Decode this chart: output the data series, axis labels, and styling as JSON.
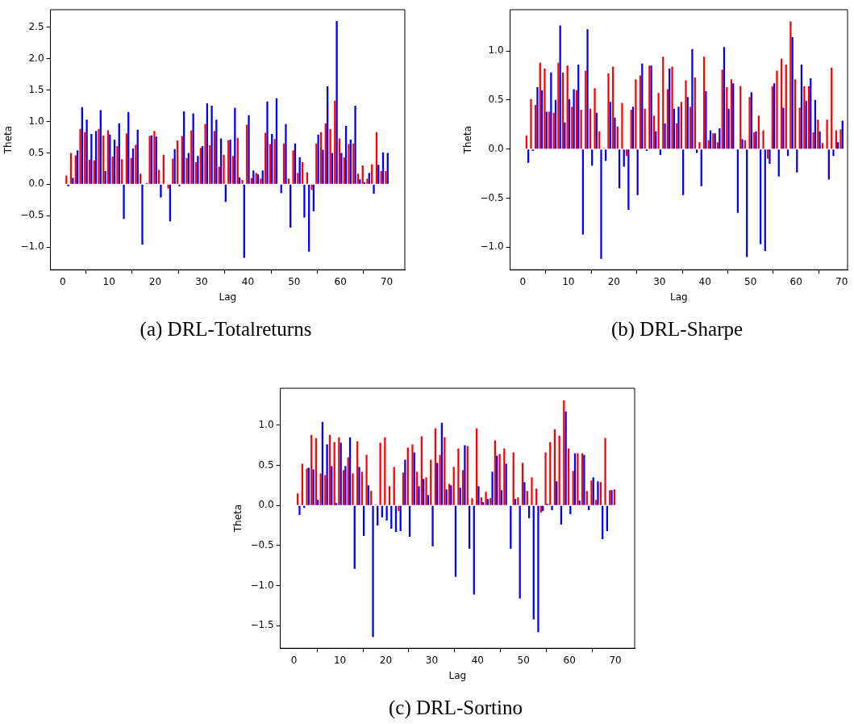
{
  "chart_data": [
    {
      "type": "bar",
      "title": "(a) DRL-Totalreturns",
      "xlabel": "Lag",
      "ylabel": "Theta",
      "grid": false,
      "legend": false,
      "x": [
        1,
        2,
        3,
        4,
        5,
        6,
        7,
        8,
        9,
        10,
        11,
        12,
        13,
        14,
        15,
        16,
        17,
        18,
        19,
        20,
        21,
        22,
        23,
        24,
        25,
        26,
        27,
        28,
        29,
        30,
        31,
        32,
        33,
        34,
        35,
        36,
        37,
        38,
        39,
        40,
        41,
        42,
        43,
        44,
        45,
        46,
        47,
        48,
        49,
        50,
        51,
        52,
        53,
        54,
        55,
        56,
        57,
        58,
        59,
        60,
        61,
        62,
        63,
        64,
        65,
        66,
        67,
        68,
        69,
        70
      ],
      "xlim": [
        -2.65,
        73.9
      ],
      "xticks": [
        0,
        10,
        20,
        30,
        40,
        50,
        60,
        70
      ],
      "ylim": [
        -1.36,
        2.78
      ],
      "yticks": [
        {
          "value": -1,
          "label": "−1.0"
        },
        {
          "value": -0.5,
          "label": "−0.5"
        },
        {
          "value": 0,
          "label": "0.0"
        },
        0.5,
        {
          "value": 1,
          "label": "1.0"
        },
        1.5,
        {
          "value": 2,
          "label": "2.0"
        },
        2.5
      ],
      "series": [
        {
          "color": "#ff0000",
          "values": [
            0.14,
            0.5,
            0.46,
            0.88,
            0.83,
            0.39,
            0.38,
            0.88,
            0.78,
            0.86,
            0.44,
            0.61,
            0.4,
            0.81,
            0.42,
            0.63,
            0.17,
            null,
            0.77,
            0.85,
            0.23,
            0.47,
            -0.07,
            0.41,
            0.7,
            0.77,
            0.42,
            0.86,
            0.35,
            0.58,
            0.96,
            0.62,
            0.85,
            0.28,
            0.47,
            0.7,
            0.45,
            0.74,
            0.07,
            0.95,
            0.1,
            0.18,
            0.09,
            0.82,
            0.64,
            0.72,
            null,
            0.65,
            0.09,
            0.54,
            0.18,
            0.35,
            0.19,
            -0.09,
            0.65,
            0.83,
            0.97,
            0.88,
            1.33,
            0.73,
            0.43,
            0.64,
            0.65,
            0.17,
            0.3,
            0.09,
            0.32,
            0.83,
            0.21,
            0.21
          ]
        },
        {
          "color": "#0000ff",
          "values": [
            -0.03,
            0.1,
            0.54,
            1.23,
            1.03,
            0.8,
            0.85,
            1.18,
            0.21,
            0.79,
            0.71,
            0.97,
            -0.55,
            1.15,
            0.57,
            0.87,
            -0.96,
            0.02,
            0.78,
            0.76,
            -0.21,
            0,
            -0.59,
            0.56,
            -0.03,
            1.16,
            0.5,
            1.13,
            0.45,
            0.61,
            1.29,
            1.25,
            1.03,
            0.73,
            -0.28,
            0.71,
            1.22,
            0.11,
            -1.17,
            1.1,
            0.22,
            0.16,
            0.22,
            1.32,
            0.8,
            1.37,
            -0.14,
            0.96,
            -0.69,
            0.65,
            0.43,
            -0.53,
            -1.07,
            -0.43,
            0.79,
            0.55,
            1.56,
            0.5,
            2.6,
            0.5,
            0.93,
            0.71,
            1.25,
            0.08,
            0.03,
            0.18,
            -0.15,
            0.31,
            0.51,
            0.5
          ]
        }
      ]
    },
    {
      "type": "bar",
      "title": "(b) DRL-Sharpe",
      "xlabel": "Lag",
      "ylabel": "Theta",
      "grid": false,
      "legend": false,
      "x": [
        1,
        2,
        3,
        4,
        5,
        6,
        7,
        8,
        9,
        10,
        11,
        12,
        13,
        14,
        15,
        16,
        17,
        18,
        19,
        20,
        21,
        22,
        23,
        24,
        25,
        26,
        27,
        28,
        29,
        30,
        31,
        32,
        33,
        34,
        35,
        36,
        37,
        38,
        39,
        40,
        41,
        42,
        43,
        44,
        45,
        46,
        47,
        48,
        49,
        50,
        51,
        52,
        53,
        54,
        55,
        56,
        57,
        58,
        59,
        60,
        61,
        62,
        63,
        64,
        65,
        66,
        67,
        68,
        69,
        70
      ],
      "xlim": [
        -2.8,
        71.3
      ],
      "xticks": [
        0,
        10,
        20,
        30,
        40,
        50,
        60,
        70
      ],
      "ylim": [
        -1.23,
        1.42
      ],
      "yticks": [
        {
          "value": -1,
          "label": "−1.0"
        },
        {
          "value": -0.5,
          "label": "−0.5"
        },
        {
          "value": 0,
          "label": "0.0"
        },
        0.5,
        {
          "value": 1,
          "label": "1.0"
        }
      ],
      "series": [
        {
          "color": "#ff0000",
          "values": [
            0.14,
            0.51,
            0.45,
            0.88,
            0.82,
            0.38,
            0.37,
            0.88,
            0.78,
            0.85,
            0.43,
            0.6,
            0.4,
            0.8,
            0.41,
            0.62,
            0.18,
            0.01,
            0.77,
            0.84,
            0.23,
            0.47,
            -0.07,
            0.4,
            0.71,
            0.75,
            0.41,
            0.85,
            0.34,
            0.57,
            0.94,
            0.61,
            0.84,
            0.26,
            0.48,
            0.7,
            0.43,
            0.73,
            0.07,
            0.94,
            0.09,
            0.16,
            0.07,
            0.81,
            0.63,
            0.71,
            0,
            0.64,
            0.09,
            0.53,
            0.17,
            0.34,
            0.19,
            -0.1,
            0.64,
            0.8,
            0.92,
            0.86,
            1.3,
            0.71,
            0.42,
            0.64,
            0.64,
            0.17,
            0.3,
            0.06,
            0.3,
            0.83,
            0.19,
            0.2
          ]
        },
        {
          "color": "#0000ff",
          "values": [
            -0.14,
            -0.02,
            0.63,
            0.6,
            0.38,
            0.78,
            0.5,
            1.26,
            0.27,
            0.51,
            0.61,
            0.86,
            -0.87,
            1.22,
            -0.17,
            0.37,
            -1.12,
            -0.12,
            0.48,
            0.32,
            -0.4,
            -0.18,
            -0.62,
            0.43,
            -0.47,
            0.87,
            -0.02,
            0.85,
            0.18,
            -0.06,
            0.26,
            0.82,
            0.41,
            0.43,
            -0.47,
            0.53,
            1.02,
            -0.04,
            -0.38,
            0.59,
            0.19,
            0.16,
            0.21,
            1.04,
            0.41,
            0.67,
            -0.65,
            0.1,
            -1.1,
            0.58,
            0.18,
            -0.97,
            -1.04,
            -0.15,
            0.67,
            -0.28,
            0.42,
            -0.07,
            1.14,
            -0.24,
            0.86,
            0.49,
            0.72,
            0.5,
            0.18,
            0,
            -0.31,
            -0.07,
            0.07,
            0.29
          ]
        }
      ]
    },
    {
      "type": "bar",
      "title": "(c) DRL-Sortino",
      "xlabel": "Lag",
      "ylabel": "Theta",
      "grid": false,
      "legend": false,
      "x": [
        1,
        2,
        3,
        4,
        5,
        6,
        7,
        8,
        9,
        10,
        11,
        12,
        13,
        14,
        15,
        16,
        17,
        18,
        19,
        20,
        21,
        22,
        23,
        24,
        25,
        26,
        27,
        28,
        29,
        30,
        31,
        32,
        33,
        34,
        35,
        36,
        37,
        38,
        39,
        40,
        41,
        42,
        43,
        44,
        45,
        46,
        47,
        48,
        49,
        50,
        51,
        52,
        53,
        54,
        55,
        56,
        57,
        58,
        59,
        60,
        61,
        62,
        63,
        64,
        65,
        66,
        67,
        68,
        69,
        70
      ],
      "xlim": [
        -3,
        74.2
      ],
      "xticks": [
        0,
        10,
        20,
        30,
        40,
        50,
        60,
        70
      ],
      "ylim": [
        -1.78,
        1.46
      ],
      "yticks": [
        {
          "value": -1.5,
          "label": "−1.5"
        },
        {
          "value": -1,
          "label": "−1.0"
        },
        {
          "value": -0.5,
          "label": "−0.5"
        },
        {
          "value": 0,
          "label": "0.0"
        },
        0.5,
        {
          "value": 1,
          "label": "1.0"
        }
      ],
      "series": [
        {
          "color": "#ff0000",
          "values": [
            0.15,
            0.52,
            0.46,
            0.88,
            0.84,
            0.4,
            0.38,
            0.88,
            0.79,
            0.85,
            0.44,
            0.6,
            0.4,
            0.8,
            0.42,
            0.63,
            0.18,
            0.01,
            0.78,
            0.85,
            0.24,
            0.48,
            -0.07,
            0.41,
            0.72,
            0.76,
            0.42,
            0.86,
            0.35,
            0.57,
            0.96,
            0.63,
            0.85,
            0.27,
            0.48,
            0.71,
            0.44,
            0.74,
            0.09,
            0.96,
            0.1,
            0.17,
            0.09,
            0.81,
            0.64,
            0.71,
            null,
            0.66,
            0.1,
            0.53,
            0.18,
            0.35,
            0.21,
            -0.09,
            0.66,
            0.79,
            0.95,
            0.87,
            1.31,
            0.71,
            0.43,
            0.65,
            0.65,
            0.18,
            0.31,
            0.07,
            0.29,
            0.84,
            0.19,
            0.2
          ]
        },
        {
          "color": "#0000ff",
          "values": [
            -0.12,
            -0.03,
            0.47,
            0.45,
            0.07,
            1.04,
            0.76,
            0.49,
            0.03,
            0.78,
            0.49,
            0.85,
            -0.79,
            0.48,
            -0.38,
            0.25,
            -1.64,
            -0.25,
            -0.15,
            -0.19,
            -0.29,
            -0.33,
            -0.32,
            0.57,
            -0.39,
            0.66,
            0.24,
            0.33,
            0.13,
            -0.51,
            0.53,
            1.03,
            0.2,
            0.25,
            -0.89,
            0.22,
            0.75,
            -0.54,
            -1.11,
            0.24,
            0.04,
            0.08,
            0.42,
            0.62,
            0.19,
            0.52,
            -0.54,
            0.08,
            -1.16,
            0.29,
            -0.16,
            -1.42,
            -1.58,
            -0.07,
            0.02,
            -0.06,
            0.3,
            -0.24,
            1.17,
            -0.11,
            0.65,
            0.06,
            0.63,
            -0.06,
            0.35,
            0.3,
            -0.42,
            -0.32,
            0.19,
            null
          ]
        }
      ]
    }
  ]
}
